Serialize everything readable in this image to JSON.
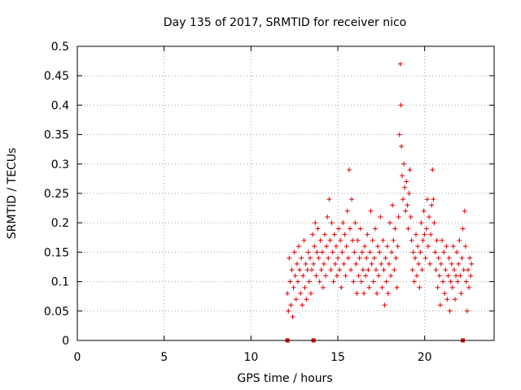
{
  "chart_data": {
    "type": "scatter",
    "title": "Day 135 of 2017, SRMTID for receiver nico",
    "xlabel": "GPS time / hours",
    "ylabel": "SRMTID / TECUs",
    "xlim": [
      0,
      24
    ],
    "ylim": [
      0,
      0.5
    ],
    "x_ticks": [
      "0",
      "5",
      "10",
      "15",
      "20"
    ],
    "y_ticks": [
      "0",
      "0.05",
      "0.1",
      "0.15",
      "0.2",
      "0.25",
      "0.3",
      "0.35",
      "0.4",
      "0.45",
      "0.5"
    ],
    "grid": true,
    "legend": "none",
    "marker": "plus",
    "color": "#e00000",
    "baseline_markers_x": [
      12.1,
      13.6,
      22.2
    ],
    "series": [
      {
        "points": [
          [
            12.1,
            0.08
          ],
          [
            12.15,
            0.05
          ],
          [
            12.2,
            0.14
          ],
          [
            12.25,
            0.1
          ],
          [
            12.3,
            0.06
          ],
          [
            12.35,
            0.12
          ],
          [
            12.4,
            0.04
          ],
          [
            12.45,
            0.09
          ],
          [
            12.5,
            0.15
          ],
          [
            12.55,
            0.11
          ],
          [
            12.6,
            0.07
          ],
          [
            12.65,
            0.13
          ],
          [
            12.7,
            0.1
          ],
          [
            12.75,
            0.16
          ],
          [
            12.8,
            0.12
          ],
          [
            12.85,
            0.08
          ],
          [
            12.9,
            0.14
          ],
          [
            12.95,
            0.06
          ],
          [
            13.0,
            0.11
          ],
          [
            13.05,
            0.17
          ],
          [
            13.1,
            0.09
          ],
          [
            13.15,
            0.13
          ],
          [
            13.2,
            0.07
          ],
          [
            13.25,
            0.12
          ],
          [
            13.3,
            0.15
          ],
          [
            13.35,
            0.1
          ],
          [
            13.4,
            0.14
          ],
          [
            13.45,
            0.08
          ],
          [
            13.5,
            0.12
          ],
          [
            13.55,
            0.18
          ],
          [
            13.6,
            0.13
          ],
          [
            13.65,
            0.16
          ],
          [
            13.7,
            0.2
          ],
          [
            13.75,
            0.11
          ],
          [
            13.8,
            0.15
          ],
          [
            13.85,
            0.19
          ],
          [
            13.9,
            0.14
          ],
          [
            13.95,
            0.1
          ],
          [
            14.0,
            0.17
          ],
          [
            14.05,
            0.12
          ],
          [
            14.1,
            0.15
          ],
          [
            14.15,
            0.09
          ],
          [
            14.2,
            0.13
          ],
          [
            14.25,
            0.18
          ],
          [
            14.3,
            0.11
          ],
          [
            14.35,
            0.16
          ],
          [
            14.4,
            0.21
          ],
          [
            14.45,
            0.14
          ],
          [
            14.5,
            0.24
          ],
          [
            14.55,
            0.17
          ],
          [
            14.6,
            0.12
          ],
          [
            14.65,
            0.2
          ],
          [
            14.7,
            0.15
          ],
          [
            14.75,
            0.1
          ],
          [
            14.8,
            0.18
          ],
          [
            14.85,
            0.13
          ],
          [
            14.9,
            0.16
          ],
          [
            14.95,
            0.11
          ],
          [
            15.0,
            0.14
          ],
          [
            15.05,
            0.19
          ],
          [
            15.1,
            0.12
          ],
          [
            15.15,
            0.17
          ],
          [
            15.2,
            0.09
          ],
          [
            15.25,
            0.15
          ],
          [
            15.3,
            0.2
          ],
          [
            15.35,
            0.13
          ],
          [
            15.4,
            0.18
          ],
          [
            15.45,
            0.11
          ],
          [
            15.5,
            0.16
          ],
          [
            15.55,
            0.22
          ],
          [
            15.6,
            0.14
          ],
          [
            15.65,
            0.29
          ],
          [
            15.7,
            0.19
          ],
          [
            15.75,
            0.12
          ],
          [
            15.8,
            0.24
          ],
          [
            15.85,
            0.17
          ],
          [
            15.9,
            0.1
          ],
          [
            15.95,
            0.15
          ],
          [
            16.0,
            0.2
          ],
          [
            16.05,
            0.13
          ],
          [
            16.1,
            0.08
          ],
          [
            16.15,
            0.17
          ],
          [
            16.2,
            0.11
          ],
          [
            16.25,
            0.14
          ],
          [
            16.3,
            0.19
          ],
          [
            16.35,
            0.1
          ],
          [
            16.4,
            0.15
          ],
          [
            16.45,
            0.12
          ],
          [
            16.5,
            0.08
          ],
          [
            16.55,
            0.16
          ],
          [
            16.6,
            0.11
          ],
          [
            16.65,
            0.14
          ],
          [
            16.7,
            0.18
          ],
          [
            16.75,
            0.12
          ],
          [
            16.8,
            0.09
          ],
          [
            16.85,
            0.15
          ],
          [
            16.9,
            0.22
          ],
          [
            16.95,
            0.13
          ],
          [
            17.0,
            0.17
          ],
          [
            17.05,
            0.1
          ],
          [
            17.1,
            0.14
          ],
          [
            17.15,
            0.19
          ],
          [
            17.2,
            0.12
          ],
          [
            17.25,
            0.08
          ],
          [
            17.3,
            0.16
          ],
          [
            17.35,
            0.11
          ],
          [
            17.4,
            0.15
          ],
          [
            17.45,
            0.21
          ],
          [
            17.5,
            0.13
          ],
          [
            17.55,
            0.09
          ],
          [
            17.6,
            0.17
          ],
          [
            17.65,
            0.12
          ],
          [
            17.7,
            0.06
          ],
          [
            17.75,
            0.14
          ],
          [
            17.8,
            0.1
          ],
          [
            17.85,
            0.16
          ],
          [
            17.9,
            0.08
          ],
          [
            17.95,
            0.13
          ],
          [
            18.0,
            0.2
          ],
          [
            18.05,
            0.11
          ],
          [
            18.1,
            0.15
          ],
          [
            18.15,
            0.23
          ],
          [
            18.2,
            0.17
          ],
          [
            18.25,
            0.12
          ],
          [
            18.3,
            0.19
          ],
          [
            18.35,
            0.14
          ],
          [
            18.4,
            0.09
          ],
          [
            18.45,
            0.16
          ],
          [
            18.5,
            0.21
          ],
          [
            18.55,
            0.35
          ],
          [
            18.6,
            0.47
          ],
          [
            18.63,
            0.4
          ],
          [
            18.66,
            0.33
          ],
          [
            18.7,
            0.28
          ],
          [
            18.75,
            0.24
          ],
          [
            18.8,
            0.3
          ],
          [
            18.85,
            0.26
          ],
          [
            18.9,
            0.22
          ],
          [
            18.95,
            0.27
          ],
          [
            19.0,
            0.23
          ],
          [
            19.05,
            0.19
          ],
          [
            19.1,
            0.25
          ],
          [
            19.15,
            0.29
          ],
          [
            19.2,
            0.21
          ],
          [
            19.25,
            0.17
          ],
          [
            19.3,
            0.12
          ],
          [
            19.35,
            0.15
          ],
          [
            19.4,
            0.1
          ],
          [
            19.45,
            0.14
          ],
          [
            19.5,
            0.18
          ],
          [
            19.55,
            0.11
          ],
          [
            19.6,
            0.16
          ],
          [
            19.65,
            0.13
          ],
          [
            19.7,
            0.09
          ],
          [
            19.75,
            0.15
          ],
          [
            19.8,
            0.2
          ],
          [
            19.85,
            0.12
          ],
          [
            19.9,
            0.17
          ],
          [
            19.95,
            0.22
          ],
          [
            20.0,
            0.18
          ],
          [
            20.05,
            0.14
          ],
          [
            20.1,
            0.19
          ],
          [
            20.15,
            0.24
          ],
          [
            20.2,
            0.16
          ],
          [
            20.25,
            0.21
          ],
          [
            20.3,
            0.13
          ],
          [
            20.35,
            0.18
          ],
          [
            20.4,
            0.23
          ],
          [
            20.45,
            0.29
          ],
          [
            20.5,
            0.24
          ],
          [
            20.55,
            0.2
          ],
          [
            20.6,
            0.15
          ],
          [
            20.65,
            0.12
          ],
          [
            20.7,
            0.17
          ],
          [
            20.75,
            0.09
          ],
          [
            20.8,
            0.14
          ],
          [
            20.85,
            0.11
          ],
          [
            20.9,
            0.06
          ],
          [
            20.95,
            0.13
          ],
          [
            21.0,
            0.17
          ],
          [
            21.05,
            0.1
          ],
          [
            21.1,
            0.15
          ],
          [
            21.15,
            0.08
          ],
          [
            21.2,
            0.12
          ],
          [
            21.25,
            0.16
          ],
          [
            21.3,
            0.07
          ],
          [
            21.35,
            0.11
          ],
          [
            21.4,
            0.14
          ],
          [
            21.45,
            0.05
          ],
          [
            21.5,
            0.1
          ],
          [
            21.55,
            0.13
          ],
          [
            21.6,
            0.09
          ],
          [
            21.65,
            0.16
          ],
          [
            21.7,
            0.12
          ],
          [
            21.75,
            0.07
          ],
          [
            21.8,
            0.11
          ],
          [
            21.85,
            0.15
          ],
          [
            21.9,
            0.1
          ],
          [
            21.95,
            0.13
          ],
          [
            22.0,
            0.17
          ],
          [
            22.05,
            0.11
          ],
          [
            22.1,
            0.08
          ],
          [
            22.15,
            0.14
          ],
          [
            22.2,
            0.19
          ],
          [
            22.25,
            0.12
          ],
          [
            22.3,
            0.22
          ],
          [
            22.35,
            0.16
          ],
          [
            22.4,
            0.1
          ],
          [
            22.45,
            0.05
          ],
          [
            22.5,
            0.12
          ],
          [
            22.55,
            0.09
          ],
          [
            22.6,
            0.14
          ],
          [
            22.65,
            0.11
          ],
          [
            22.7,
            0.13
          ]
        ]
      }
    ]
  }
}
